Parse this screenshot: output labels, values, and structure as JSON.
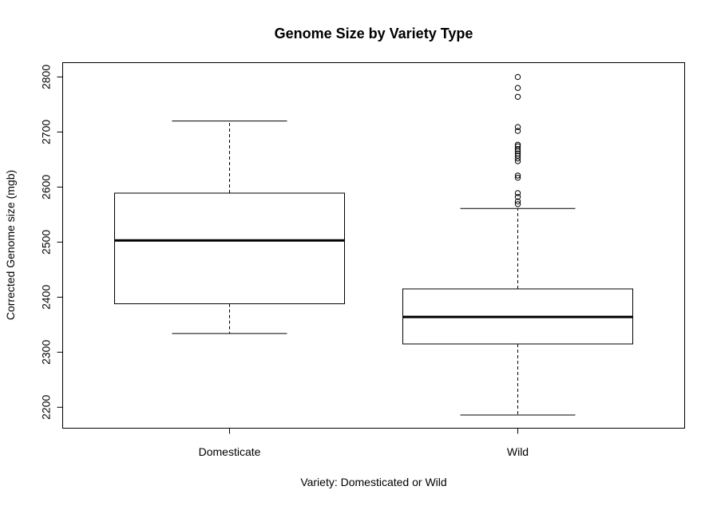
{
  "chart_data": {
    "type": "boxplot",
    "title": "Genome Size by Variety Type",
    "xlabel": "Variety: Domesticated or Wild",
    "ylabel": "Corrected Genome size (mgb)",
    "ylim": [
      2162,
      2826
    ],
    "yticks": [
      2200,
      2300,
      2400,
      2500,
      2600,
      2700,
      2800
    ],
    "grid": false,
    "legend": "none",
    "categories": [
      "Domesticate",
      "Wild"
    ],
    "boxes": [
      {
        "category": "Domesticate",
        "whisker_low": 2334,
        "q1": 2388,
        "median": 2503,
        "q3": 2589,
        "whisker_high": 2720,
        "outliers": []
      },
      {
        "category": "Wild",
        "whisker_low": 2186,
        "q1": 2315,
        "median": 2364,
        "q3": 2415,
        "whisker_high": 2561,
        "outliers": [
          2569,
          2574,
          2582,
          2589,
          2617,
          2621,
          2647,
          2652,
          2657,
          2661,
          2665,
          2669,
          2674,
          2677,
          2702,
          2709,
          2764,
          2780,
          2800
        ]
      }
    ]
  }
}
